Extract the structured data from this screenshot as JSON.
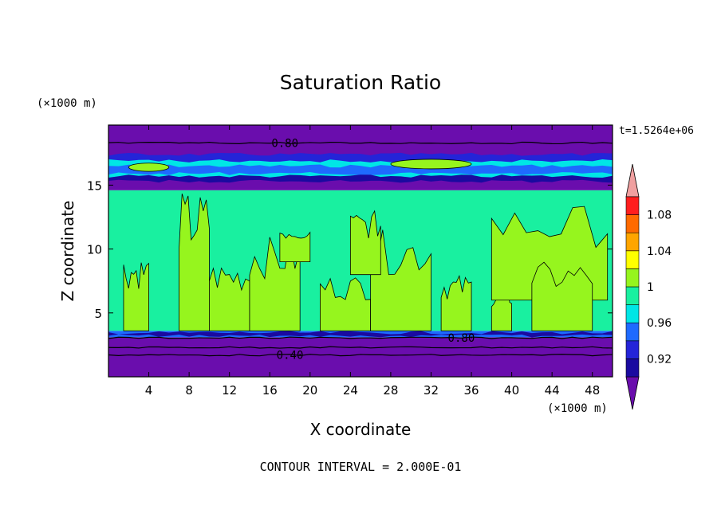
{
  "chart_data": {
    "type": "heatmap",
    "title": "Saturation Ratio",
    "xlabel": "X coordinate",
    "ylabel": "Z coordinate",
    "x_units": "(×1000 m)",
    "y_units": "(×1000 m)",
    "xlim": [
      0,
      50
    ],
    "ylim": [
      0,
      19.7
    ],
    "x_ticks": [
      4,
      8,
      12,
      16,
      20,
      24,
      28,
      32,
      36,
      40,
      44,
      48
    ],
    "y_ticks": [
      5,
      10,
      15
    ],
    "time_label": "t=1.5264e+06",
    "contour_interval_label": "CONTOUR INTERVAL = 2.000E-01",
    "contour_labels": [
      {
        "text": "0.80",
        "x": 17.5,
        "y": 18.3
      },
      {
        "text": "0.80",
        "x": 35.0,
        "y": 3.05
      },
      {
        "text": "0.40",
        "x": 18.0,
        "y": 1.7
      }
    ],
    "colorbar": {
      "levels": [
        0.88,
        0.9,
        0.92,
        0.94,
        0.96,
        0.98,
        1.0,
        1.02,
        1.04,
        1.06,
        1.08,
        1.1
      ],
      "tick_labels": [
        "0.92",
        "0.96",
        "1",
        "1.04",
        "1.08"
      ],
      "tick_values": [
        0.92,
        0.96,
        1.0,
        1.04,
        1.08
      ],
      "colors": [
        "#6a0dad",
        "#1a0aa0",
        "#2424d8",
        "#1e6aff",
        "#00e6e6",
        "#19f0a0",
        "#96f51e",
        "#ffff00",
        "#ffa500",
        "#ff6a00",
        "#ff1e1e",
        "#f0a0a0"
      ]
    },
    "bands": [
      {
        "z_range": [
          0.0,
          3.1
        ],
        "value": "< 0.90",
        "color": "#6a0dad"
      },
      {
        "z_range": [
          3.1,
          3.6
        ],
        "value": "0.90-0.96",
        "color": "#1e6aff"
      },
      {
        "z_range": [
          3.6,
          14.6
        ],
        "value": "0.98-1.02",
        "color": "#19f0a0",
        "patches": "#96f51e"
      },
      {
        "z_range": [
          14.6,
          15.5
        ],
        "value": "0.90-0.96",
        "color": "#6a0dad"
      },
      {
        "z_range": [
          15.5,
          17.2
        ],
        "value": "0.92-1.02",
        "color": "#00e6e6"
      },
      {
        "z_range": [
          17.2,
          19.7
        ],
        "value": "< 0.90",
        "color": "#6a0dad"
      }
    ]
  }
}
